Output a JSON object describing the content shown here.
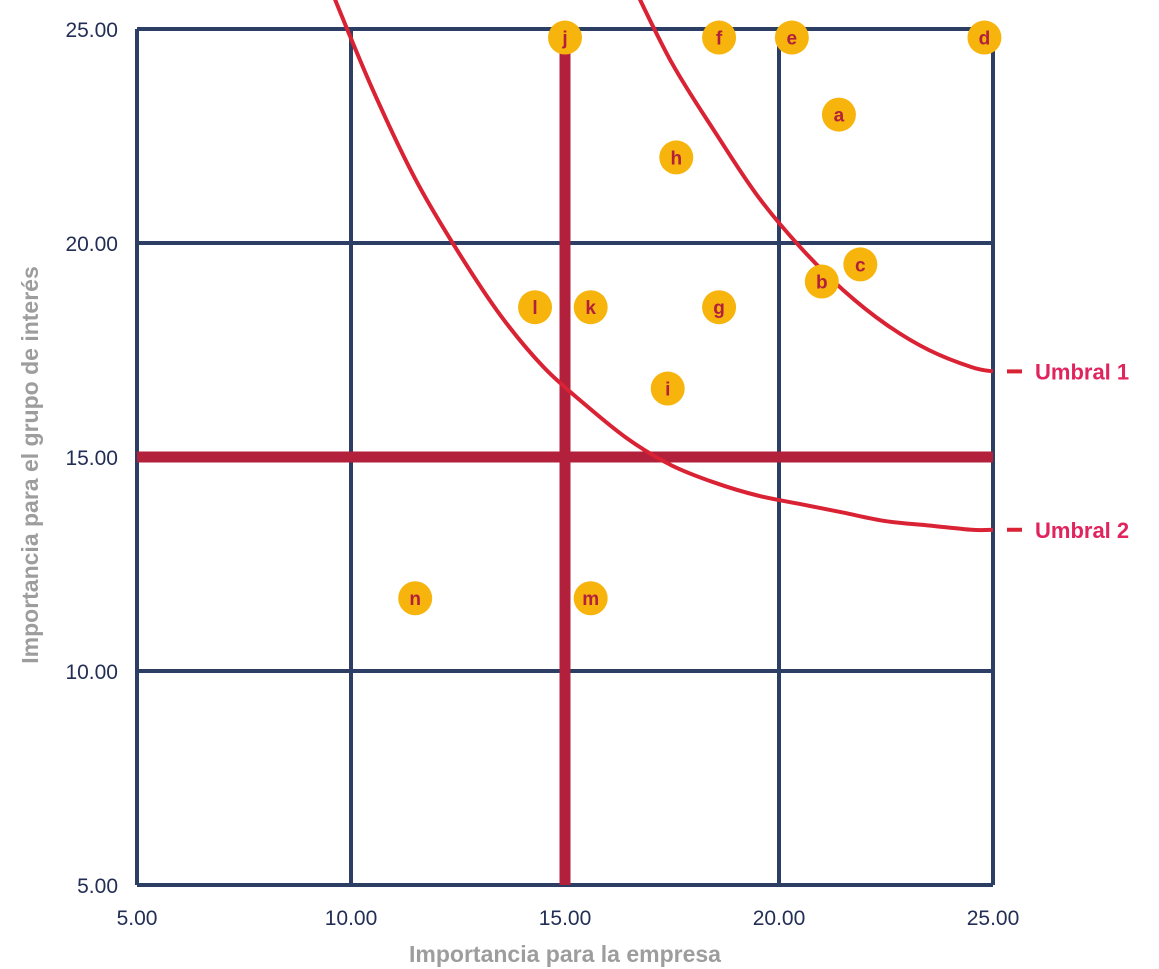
{
  "chart_data": {
    "type": "scatter",
    "xlabel": "Importancia para la empresa",
    "ylabel": "Importancia para el grupo de interés",
    "xlim": [
      5,
      25
    ],
    "ylim": [
      5,
      25
    ],
    "x_ticks": [
      "5.00",
      "10.00",
      "15.00",
      "20.00",
      "25.00"
    ],
    "y_ticks": [
      "5.00",
      "10.00",
      "15.00",
      "20.00",
      "25.00"
    ],
    "grid": true,
    "divider_lines": {
      "x": 15,
      "y": 15
    },
    "points": [
      {
        "label": "a",
        "x": 21.4,
        "y": 23.0
      },
      {
        "label": "b",
        "x": 21.0,
        "y": 19.1
      },
      {
        "label": "c",
        "x": 21.9,
        "y": 19.5
      },
      {
        "label": "d",
        "x": 24.8,
        "y": 24.8
      },
      {
        "label": "e",
        "x": 20.3,
        "y": 24.8
      },
      {
        "label": "f",
        "x": 18.6,
        "y": 24.8
      },
      {
        "label": "g",
        "x": 18.6,
        "y": 18.5
      },
      {
        "label": "h",
        "x": 17.6,
        "y": 22.0
      },
      {
        "label": "i",
        "x": 17.4,
        "y": 16.6
      },
      {
        "label": "j",
        "x": 15.0,
        "y": 24.8
      },
      {
        "label": "k",
        "x": 15.6,
        "y": 18.5
      },
      {
        "label": "l",
        "x": 14.3,
        "y": 18.5
      },
      {
        "label": "m",
        "x": 15.6,
        "y": 11.7
      },
      {
        "label": "n",
        "x": 11.5,
        "y": 11.7
      }
    ],
    "thresholds": [
      {
        "name": "Umbral 1",
        "curve": [
          [
            16.6,
            26.0
          ],
          [
            17.5,
            24.2
          ],
          [
            18.5,
            22.6
          ],
          [
            19.5,
            21.1
          ],
          [
            20.5,
            19.9
          ],
          [
            21.5,
            18.9
          ],
          [
            22.5,
            18.1
          ],
          [
            23.5,
            17.5
          ],
          [
            24.5,
            17.1
          ],
          [
            25.0,
            17.0
          ]
        ]
      },
      {
        "name": "Umbral 2",
        "curve": [
          [
            9.5,
            26.0
          ],
          [
            10.5,
            23.6
          ],
          [
            11.5,
            21.5
          ],
          [
            12.5,
            19.8
          ],
          [
            13.5,
            18.3
          ],
          [
            14.5,
            17.1
          ],
          [
            15.5,
            16.2
          ],
          [
            16.5,
            15.4
          ],
          [
            17.5,
            14.8
          ],
          [
            18.5,
            14.4
          ],
          [
            19.5,
            14.1
          ],
          [
            20.5,
            13.9
          ],
          [
            21.5,
            13.7
          ],
          [
            22.5,
            13.5
          ],
          [
            23.5,
            13.4
          ],
          [
            24.5,
            13.3
          ],
          [
            25.0,
            13.3
          ]
        ]
      }
    ],
    "colors": {
      "grid": "#2c3e63",
      "divider": "#b3203c",
      "threshold": "#d92233",
      "threshold_label": "#e0245e",
      "point_fill": "#f7b40c",
      "point_text": "#b3203c",
      "tick_text": "#232e55",
      "axis_label": "#9d9d9d"
    }
  }
}
